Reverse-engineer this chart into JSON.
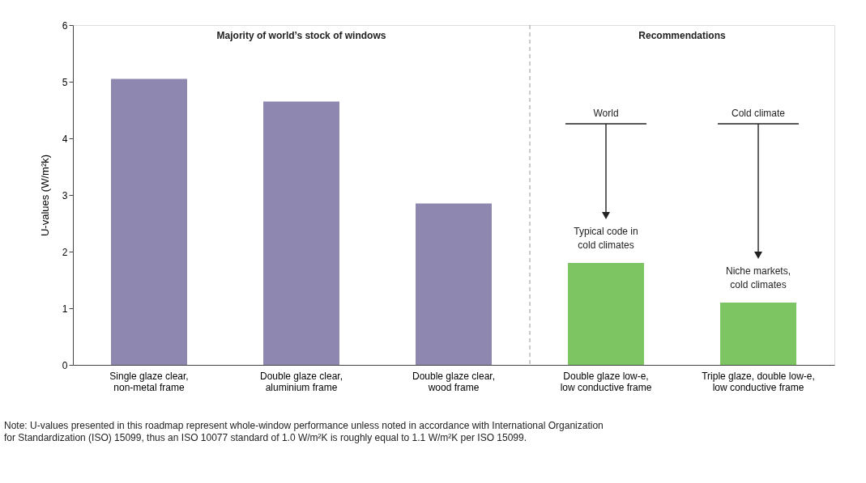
{
  "chart_data": {
    "type": "bar",
    "ylabel": "U-values (W/m²k)",
    "categories": [
      "Single glaze clear,\nnon-metal frame",
      "Double glaze clear,\naluminium frame",
      "Double glaze clear,\nwood frame",
      "Double glaze low-e,\nlow conductive frame",
      "Triple glaze, double low-e,\nlow conductive frame"
    ],
    "values": [
      5.05,
      4.65,
      2.85,
      1.8,
      1.1
    ],
    "colors": [
      "#8e87b0",
      "#8e87b0",
      "#8e87b0",
      "#7dc462",
      "#7dc462"
    ],
    "ylim": [
      0,
      6
    ],
    "yticks": [
      0,
      1,
      2,
      3,
      4,
      5,
      6
    ],
    "grid": false,
    "annotations": [
      "Majority of world’s stock of windows",
      "Recommendations",
      "World",
      "Typical code in\ncold climates",
      "Cold climate",
      "Niche markets,\ncold climates",
      "Note: U-values presented in this roadmap represent whole-window performance unless noted in accordance with International Organization\nfor Standardization (ISO) 15099, thus an ISO 10077 standard of 1.0 W/m²K is roughly equal to 1.1 W/m²K per ISO 15099."
    ]
  }
}
